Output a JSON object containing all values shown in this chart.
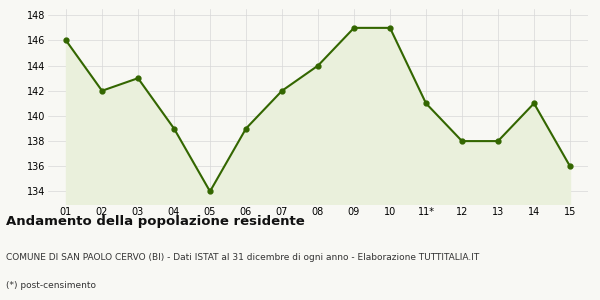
{
  "x_labels": [
    "01",
    "02",
    "03",
    "04",
    "05",
    "06",
    "07",
    "08",
    "09",
    "10",
    "11*",
    "12",
    "13",
    "14",
    "15"
  ],
  "y_values": [
    146,
    142,
    143,
    139,
    134,
    139,
    142,
    144,
    147,
    147,
    141,
    138,
    138,
    141,
    136
  ],
  "line_color": "#336600",
  "fill_color": "#eaf0dc",
  "marker": "o",
  "marker_size": 3.5,
  "line_width": 1.5,
  "ylim": [
    133,
    148.5
  ],
  "yticks": [
    134,
    136,
    138,
    140,
    142,
    144,
    146,
    148
  ],
  "title": "Andamento della popolazione residente",
  "subtitle": "COMUNE DI SAN PAOLO CERVO (BI) - Dati ISTAT al 31 dicembre di ogni anno - Elaborazione TUTTITALIA.IT",
  "footnote": "(*) post-censimento",
  "title_fontsize": 9.5,
  "subtitle_fontsize": 6.5,
  "footnote_fontsize": 6.5,
  "tick_fontsize": 7,
  "bg_color": "#f8f8f4",
  "plot_bg_color": "#f8f8f4",
  "grid_color": "#d8d8d8"
}
